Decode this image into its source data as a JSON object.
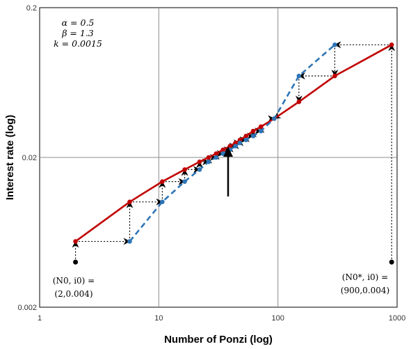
{
  "chart_data": {
    "type": "line",
    "xlabel": "Number of Ponzi (log)",
    "ylabel": "Interest rate (log)",
    "xscale": "log",
    "yscale": "log",
    "xlim": [
      1,
      1000
    ],
    "ylim": [
      0.002,
      0.2
    ],
    "xticks": [
      1,
      10,
      100,
      1000
    ],
    "xtick_labels": [
      "1",
      "10",
      "100",
      "1000"
    ],
    "yticks": [
      0.002,
      0.02,
      0.2
    ],
    "ytick_labels": [
      "0.002",
      "0.02",
      "0.2"
    ],
    "grid": true,
    "parameters": [
      "α = 0.5",
      "β = 1.3",
      "k = 0.0015"
    ],
    "colors": {
      "solid_line": "#c00000",
      "dashed_line": "#2e75b6",
      "dotted": "#000000"
    },
    "series": [
      {
        "style": "solid",
        "color": "#c00000",
        "x": [
          2,
          5.7,
          10.7,
          16.5,
          22,
          26.2,
          30.3,
          34.6,
          39.6,
          44,
          48,
          54,
          62,
          72,
          93,
          150,
          300,
          900
        ],
        "y": [
          0.0055,
          0.0101,
          0.0138,
          0.0166,
          0.0187,
          0.02,
          0.0212,
          0.0225,
          0.0238,
          0.025,
          0.0262,
          0.0278,
          0.03,
          0.0321,
          0.0363,
          0.047,
          0.07,
          0.113
        ]
      },
      {
        "style": "dashed",
        "color": "#2e75b6",
        "x": [
          5.7,
          10.7,
          16.5,
          22,
          26.2,
          30.3,
          34.6,
          39.6,
          44,
          48,
          54,
          62,
          72,
          93,
          150,
          300
        ],
        "y": [
          0.0055,
          0.0101,
          0.0138,
          0.0166,
          0.0187,
          0.02,
          0.0212,
          0.0225,
          0.0238,
          0.025,
          0.0262,
          0.0278,
          0.03,
          0.0363,
          0.07,
          0.113
        ]
      }
    ],
    "start_points": [
      {
        "x": 2,
        "y": 0.004,
        "label_lines": [
          "(N0, i0) =",
          "(2,0.004)"
        ]
      },
      {
        "x": 900,
        "y": 0.004,
        "label_lines": [
          "(N0*, i0) =",
          "(900,0.004)"
        ]
      }
    ],
    "convergence_point": {
      "x": 40,
      "y": 0.0235
    }
  }
}
